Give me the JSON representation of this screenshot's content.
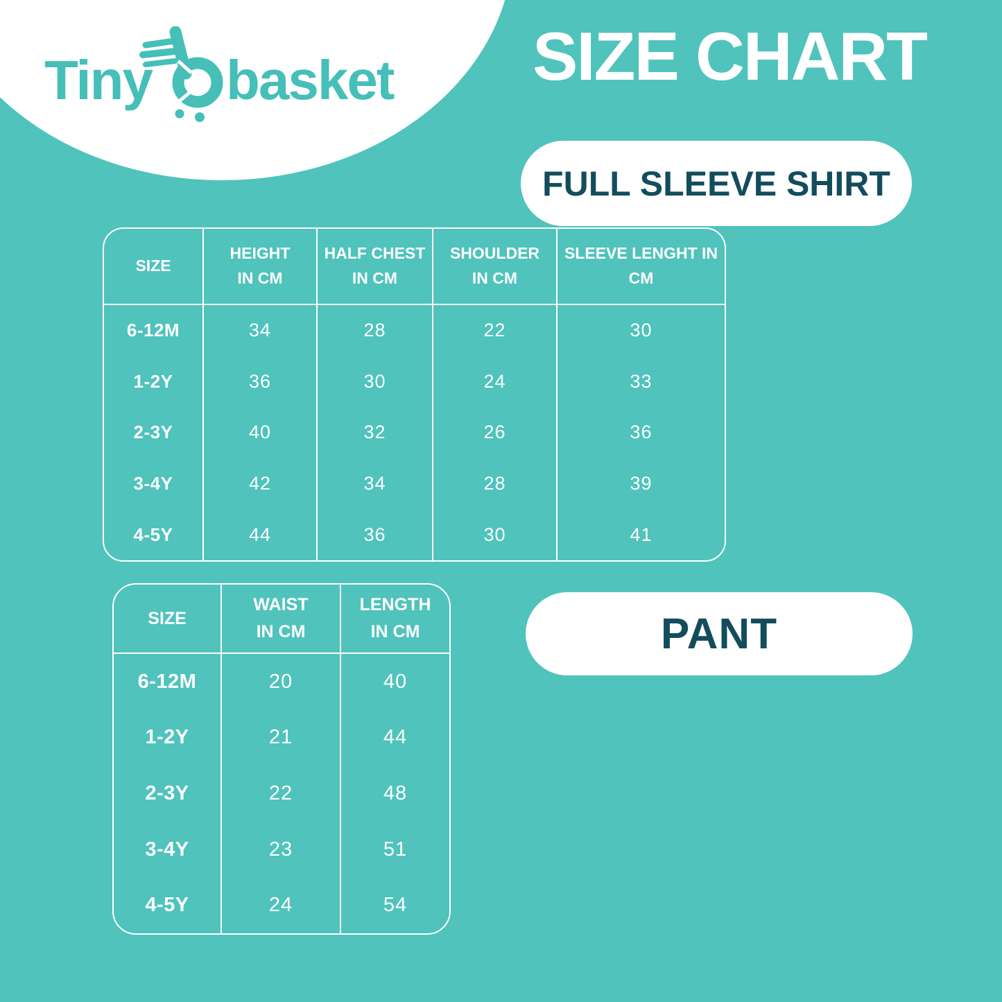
{
  "colors": {
    "background": "#4FC3BC",
    "logo_teal": "#45BFB8",
    "dark_text": "#134D5D",
    "table_lines": "#FFFFFF"
  },
  "logo": {
    "word1": "Tiny",
    "word2": "basket",
    "icon": "cart-basket-icon"
  },
  "title": "SIZE CHART",
  "shirt": {
    "pill_label": "FULL SLEEVE SHIRT",
    "table": {
      "headers": [
        "SIZE",
        "HEIGHT\nIN CM",
        "HALF CHEST\nIN CM",
        "SHOULDER\nIN CM",
        "SLEEVE LENGHT IN\nCM"
      ],
      "rows": [
        [
          "6-12M",
          "34",
          "28",
          "22",
          "30"
        ],
        [
          "1-2Y",
          "36",
          "30",
          "24",
          "33"
        ],
        [
          "2-3Y",
          "40",
          "32",
          "26",
          "36"
        ],
        [
          "3-4Y",
          "42",
          "34",
          "28",
          "39"
        ],
        [
          "4-5Y",
          "44",
          "36",
          "30",
          "41"
        ]
      ]
    }
  },
  "pant": {
    "pill_label": "PANT",
    "table": {
      "headers": [
        "SIZE",
        "WAIST\nIN CM",
        "LENGTH\nIN CM"
      ],
      "rows": [
        [
          "6-12M",
          "20",
          "40"
        ],
        [
          "1-2Y",
          "21",
          "44"
        ],
        [
          "2-3Y",
          "22",
          "48"
        ],
        [
          "3-4Y",
          "23",
          "51"
        ],
        [
          "4-5Y",
          "24",
          "54"
        ]
      ]
    }
  }
}
